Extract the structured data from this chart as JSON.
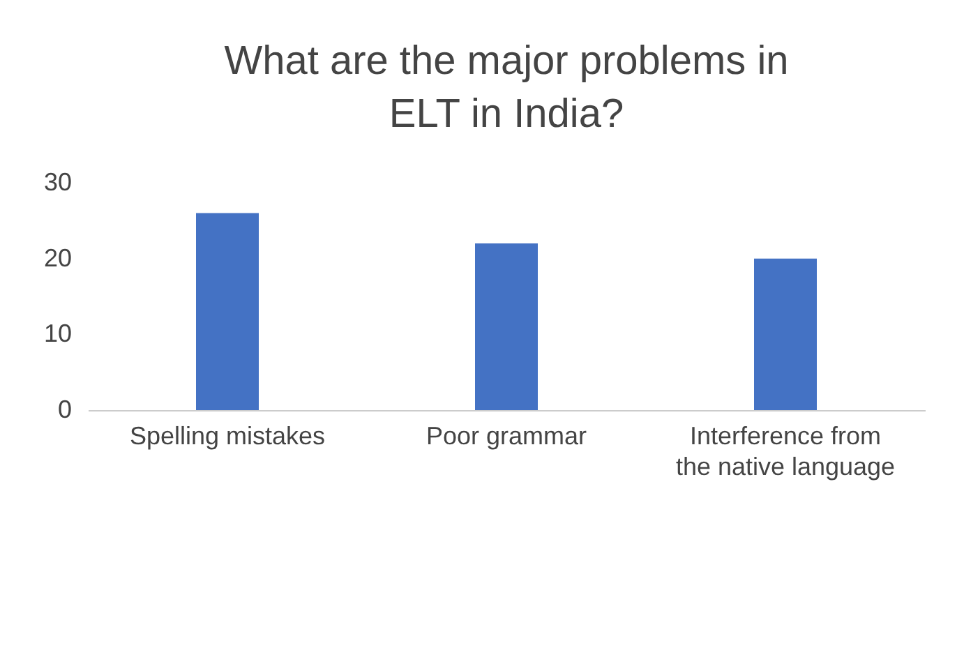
{
  "chart_data": {
    "type": "bar",
    "title": "What are the major problems in ELT in India?",
    "categories": [
      "Spelling mistakes",
      "Poor grammar",
      "Interference from the native language"
    ],
    "values": [
      26,
      22,
      20
    ],
    "color": "#4472c4",
    "ylim": [
      0,
      30
    ],
    "yticks": [
      0,
      10,
      20,
      30
    ],
    "grid": false
  }
}
